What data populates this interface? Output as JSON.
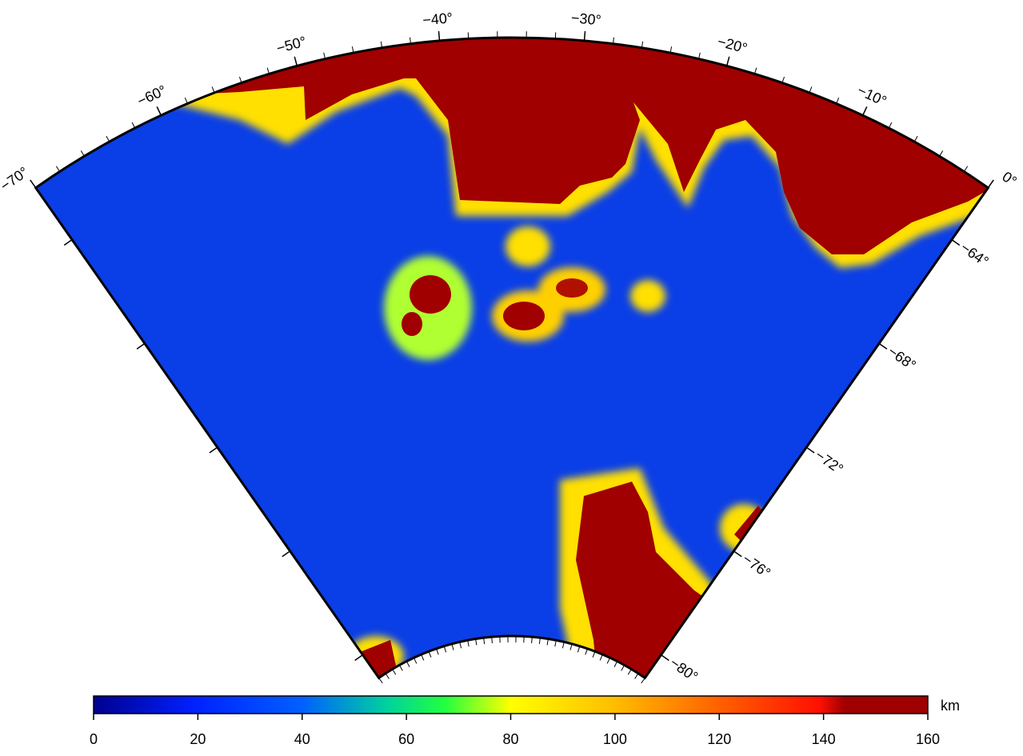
{
  "map": {
    "lon_ticks": [
      {
        "value": -70,
        "label": "−70°"
      },
      {
        "value": -60,
        "label": "−60°"
      },
      {
        "value": -50,
        "label": "−50°"
      },
      {
        "value": -40,
        "label": "−40°"
      },
      {
        "value": -30,
        "label": "−30°"
      },
      {
        "value": -20,
        "label": "−20°"
      },
      {
        "value": -10,
        "label": "−10°"
      },
      {
        "value": 0,
        "label": "0°"
      }
    ],
    "lat_ticks": [
      {
        "value": -64,
        "label": "−64°"
      },
      {
        "value": -68,
        "label": "−68°"
      },
      {
        "value": -72,
        "label": "−72°"
      },
      {
        "value": -76,
        "label": "−76°"
      },
      {
        "value": -80,
        "label": "−80°"
      }
    ],
    "colorbar": {
      "lim": [
        0,
        160
      ],
      "ticks": [
        0,
        20,
        40,
        60,
        80,
        100,
        120,
        140,
        160
      ],
      "unit": "km"
    }
  }
}
